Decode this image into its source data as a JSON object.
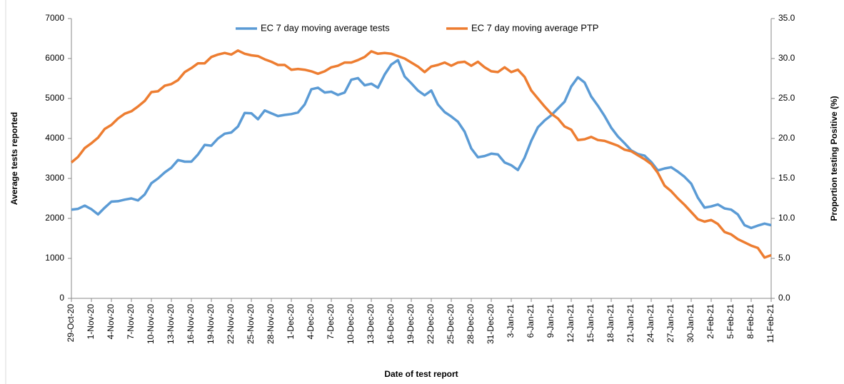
{
  "chart_data": {
    "type": "line",
    "x_label": "Date of test report",
    "y_label": "Average tests reported",
    "y2_label": "Proportion testing Positive (%)",
    "categories": [
      "29-Oct-20",
      null,
      null,
      "1-Nov-20",
      null,
      null,
      "4-Nov-20",
      null,
      null,
      "7-Nov-20",
      null,
      null,
      "10-Nov-20",
      null,
      null,
      "13-Nov-20",
      null,
      null,
      "16-Nov-20",
      null,
      null,
      "19-Nov-20",
      null,
      null,
      "22-Nov-20",
      null,
      null,
      "25-Nov-20",
      null,
      null,
      "28-Nov-20",
      null,
      null,
      "1-Dec-20",
      null,
      null,
      "4-Dec-20",
      null,
      null,
      "7-Dec-20",
      null,
      null,
      "10-Dec-20",
      null,
      null,
      "13-Dec-20",
      null,
      null,
      "16-Dec-20",
      null,
      null,
      "19-Dec-20",
      null,
      null,
      "22-Dec-20",
      null,
      null,
      "25-Dec-20",
      null,
      null,
      "28-Dec-20",
      null,
      null,
      "31-Dec-20",
      null,
      null,
      "3-Jan-21",
      null,
      null,
      "6-Jan-21",
      null,
      null,
      "9-Jan-21",
      null,
      null,
      "12-Jan-21",
      null,
      null,
      "15-Jan-21",
      null,
      null,
      "18-Jan-21",
      null,
      null,
      "21-Jan-21",
      null,
      null,
      "24-Jan-21",
      null,
      null,
      "27-Jan-21",
      null,
      null,
      "30-Jan-21",
      null,
      null,
      "2-Feb-21",
      null,
      null,
      "5-Feb-21",
      null,
      null,
      "8-Feb-21",
      null,
      null,
      "11-Feb-21"
    ],
    "series": [
      {
        "name": "EC 7 day moving average tests",
        "color": "#5b9bd5",
        "values": [
          2220,
          2240,
          2320,
          2230,
          2100,
          2270,
          2420,
          2430,
          2470,
          2500,
          2450,
          2600,
          2880,
          3000,
          3150,
          3270,
          3460,
          3420,
          3420,
          3600,
          3840,
          3820,
          4000,
          4120,
          4150,
          4300,
          4640,
          4630,
          4480,
          4700,
          4630,
          4560,
          4590,
          4610,
          4650,
          4850,
          5230,
          5270,
          5150,
          5170,
          5090,
          5150,
          5470,
          5510,
          5330,
          5370,
          5270,
          5600,
          5850,
          5960,
          5550,
          5380,
          5200,
          5080,
          5200,
          4850,
          4660,
          4550,
          4420,
          4170,
          3750,
          3530,
          3560,
          3620,
          3600,
          3400,
          3330,
          3210,
          3520,
          3940,
          4280,
          4450,
          4580,
          4750,
          4920,
          5300,
          5530,
          5400,
          5050,
          4820,
          4560,
          4270,
          4050,
          3880,
          3700,
          3610,
          3570,
          3410,
          3200,
          3250,
          3280,
          3170,
          3040,
          2870,
          2520,
          2270,
          2300,
          2350,
          2250,
          2220,
          2100,
          1830,
          1760,
          1820,
          1870,
          1830
        ]
      },
      {
        "name": "EC 7 day moving average PTP",
        "color": "#ed7d31",
        "axis": "y2",
        "values": [
          17.0,
          17.7,
          18.8,
          19.4,
          20.1,
          21.2,
          21.7,
          22.5,
          23.1,
          23.4,
          24.0,
          24.7,
          25.8,
          25.9,
          26.6,
          26.8,
          27.3,
          28.3,
          28.8,
          29.4,
          29.4,
          30.2,
          30.5,
          30.7,
          30.5,
          31.0,
          30.6,
          30.4,
          30.3,
          29.9,
          29.6,
          29.2,
          29.2,
          28.6,
          28.7,
          28.6,
          28.4,
          28.1,
          28.4,
          28.9,
          29.1,
          29.5,
          29.5,
          29.8,
          30.2,
          30.9,
          30.6,
          30.7,
          30.6,
          30.3,
          30.0,
          29.5,
          29.0,
          28.3,
          29.0,
          29.2,
          29.5,
          29.1,
          29.5,
          29.6,
          29.1,
          29.6,
          28.9,
          28.4,
          28.3,
          28.9,
          28.3,
          28.6,
          27.7,
          26.0,
          25.0,
          24.0,
          23.1,
          22.5,
          21.5,
          21.1,
          19.8,
          19.9,
          20.2,
          19.8,
          19.7,
          19.4,
          19.1,
          18.6,
          18.4,
          17.9,
          17.4,
          16.8,
          15.7,
          14.1,
          13.4,
          12.5,
          11.7,
          10.8,
          9.9,
          9.6,
          9.8,
          9.3,
          8.3,
          8.0,
          7.4,
          7.0,
          6.6,
          6.3,
          5.1,
          5.4
        ]
      }
    ],
    "ylim": [
      0,
      7000
    ],
    "yticks": [
      0,
      1000,
      2000,
      3000,
      4000,
      5000,
      6000,
      7000
    ],
    "y2lim": [
      0,
      35
    ],
    "y2ticks": [
      {
        "value": 0,
        "label": "0.0"
      },
      {
        "value": 5,
        "label": "5.0"
      },
      {
        "value": 10,
        "label": "10.0"
      },
      {
        "value": 15,
        "label": "15.0"
      },
      {
        "value": 20,
        "label": "20.0"
      },
      {
        "value": 25,
        "label": "25.0"
      },
      {
        "value": 30,
        "label": "30.0"
      },
      {
        "value": 35,
        "label": "35.0"
      }
    ],
    "legend": "top"
  }
}
